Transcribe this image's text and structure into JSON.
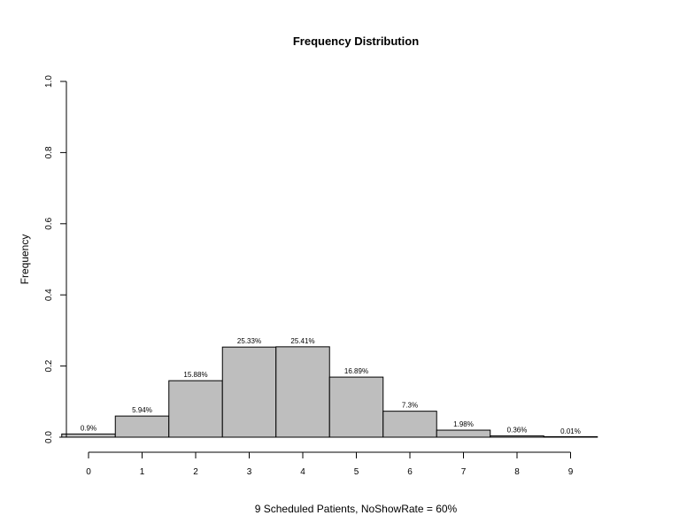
{
  "chart_data": {
    "type": "bar",
    "title": "Frequency Distribution",
    "xlabel": "9 Scheduled Patients,  NoShowRate = 60%",
    "ylabel": "Frequency",
    "categories": [
      "0",
      "1",
      "2",
      "3",
      "4",
      "5",
      "6",
      "7",
      "8",
      "9"
    ],
    "values": [
      0.009,
      0.0594,
      0.1588,
      0.2533,
      0.2541,
      0.1689,
      0.073,
      0.0198,
      0.0036,
      0.0001
    ],
    "data_labels": [
      "0.9%",
      "5.94%",
      "15.88%",
      "25.33%",
      "25.41%",
      "16.89%",
      "7.3%",
      "1.98%",
      "0.36%",
      "0.01%"
    ],
    "ylim": [
      0,
      1
    ],
    "yticks": [
      "0.0",
      "0.2",
      "0.4",
      "0.6",
      "0.8",
      "1.0"
    ],
    "yticks_values": [
      0,
      0.2,
      0.4,
      0.6,
      0.8,
      1.0
    ],
    "grid": false,
    "bar_color": "#bebebe",
    "edge_color": "#000000"
  }
}
